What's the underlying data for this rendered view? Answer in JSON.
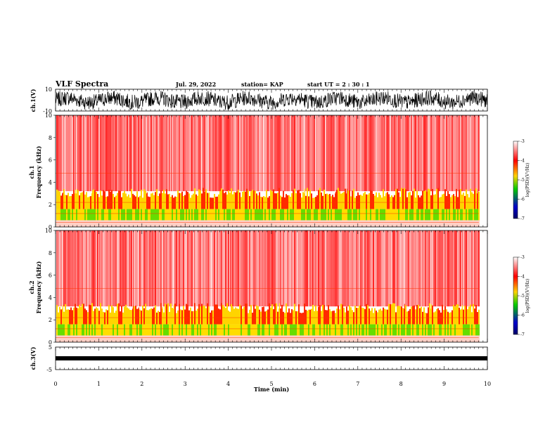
{
  "header": {
    "title": "VLF Spectra",
    "date": "Jul. 29, 2022",
    "station": "station= KAP",
    "start": "start  UT =   2 : 30 : 1"
  },
  "colors": {
    "spectrogram": [
      "#ffffff",
      "#ff0000",
      "#ffd400",
      "#00cc00",
      "#0000cc",
      "#000066"
    ]
  },
  "chart_data": [
    {
      "type": "line",
      "panel": "ch1-waveform",
      "ylabel": "ch.1(V)",
      "ylim": [
        -10,
        10
      ],
      "yticks": [
        "10",
        "-10"
      ],
      "xlim": [
        0,
        10
      ]
    },
    {
      "type": "heatmap",
      "panel": "ch1-spectrogram",
      "ylabel": "ch.1\nFrequency (kHz)",
      "ylim": [
        0,
        10
      ],
      "yticks": [
        "0",
        "2",
        "4",
        "6",
        "8",
        "10"
      ],
      "xlim": [
        0,
        9.8
      ],
      "colorbar": {
        "label": "log(PSD)(V²/Hz)",
        "range": [
          -7,
          -3
        ],
        "ticks": [
          "-3",
          "-4",
          "-5",
          "-6",
          "-7"
        ]
      }
    },
    {
      "type": "heatmap",
      "panel": "ch2-spectrogram",
      "ylabel": "ch.2\nFrequency (kHz)",
      "ylim": [
        0,
        10
      ],
      "yticks": [
        "0",
        "2",
        "4",
        "6",
        "8",
        "10"
      ],
      "xlim": [
        0,
        9.8
      ],
      "colorbar": {
        "label": "log(PSD)(V²/Hz)",
        "range": [
          -7,
          -3
        ],
        "ticks": [
          "-3",
          "-4",
          "-5",
          "-6",
          "-7"
        ]
      }
    },
    {
      "type": "line",
      "panel": "ch3-waveform",
      "ylabel": "ch.3(V)",
      "ylim": [
        -5,
        5
      ],
      "yticks": [
        "5",
        "-5"
      ],
      "xlim": [
        0,
        10
      ],
      "xlabel": "Time (min)",
      "xticks": [
        "0",
        "1",
        "2",
        "3",
        "4",
        "5",
        "6",
        "7",
        "8",
        "9",
        "10"
      ]
    }
  ],
  "labels": {
    "ch1_v": "ch.1(V)",
    "ch1": "ch.1",
    "freq": "Frequency (kHz)",
    "ch2": "ch.2",
    "ch3_v": "ch.3(V)",
    "time": "Time (min)",
    "cbar": "log(PSD)(V²/Hz)"
  }
}
